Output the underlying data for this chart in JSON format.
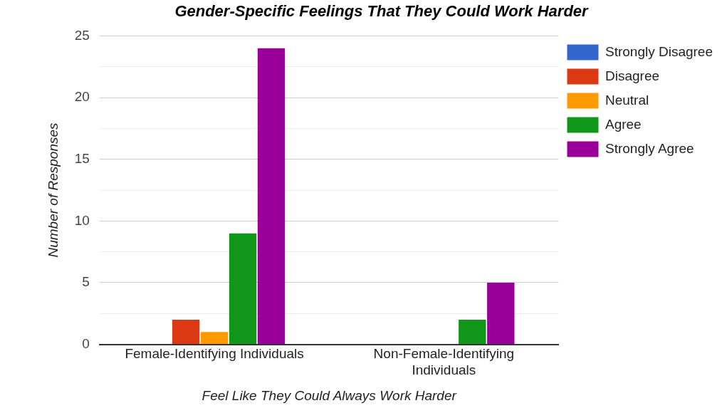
{
  "chart_data": {
    "type": "bar",
    "title": "Gender-Specific Feelings That They Could Work Harder",
    "xlabel": "Feel Like They Could Always Work Harder",
    "ylabel": "Number of Responses",
    "categories": [
      [
        "Female-Identifying Individuals"
      ],
      [
        "Non-Female-Identifying",
        "Individuals"
      ]
    ],
    "series": [
      {
        "name": "Strongly Disagree",
        "color": "#3366cc",
        "values": [
          0,
          0
        ]
      },
      {
        "name": "Disagree",
        "color": "#dc3912",
        "values": [
          2,
          0
        ]
      },
      {
        "name": "Neutral",
        "color": "#ff9900",
        "values": [
          1,
          0
        ]
      },
      {
        "name": "Agree",
        "color": "#109618",
        "values": [
          9,
          2
        ]
      },
      {
        "name": "Strongly Agree",
        "color": "#990099",
        "values": [
          24,
          5
        ]
      }
    ],
    "ylim": [
      0,
      25
    ],
    "yticks": [
      0,
      {
        "value": 2.5,
        "label": null
      },
      5,
      {
        "value": 7.5,
        "label": null
      },
      10,
      {
        "value": 12.5,
        "label": null
      },
      15,
      {
        "value": 17.5,
        "label": null
      },
      20,
      {
        "value": 22.5,
        "label": null
      },
      25
    ],
    "grid": "y",
    "legend": "right"
  }
}
